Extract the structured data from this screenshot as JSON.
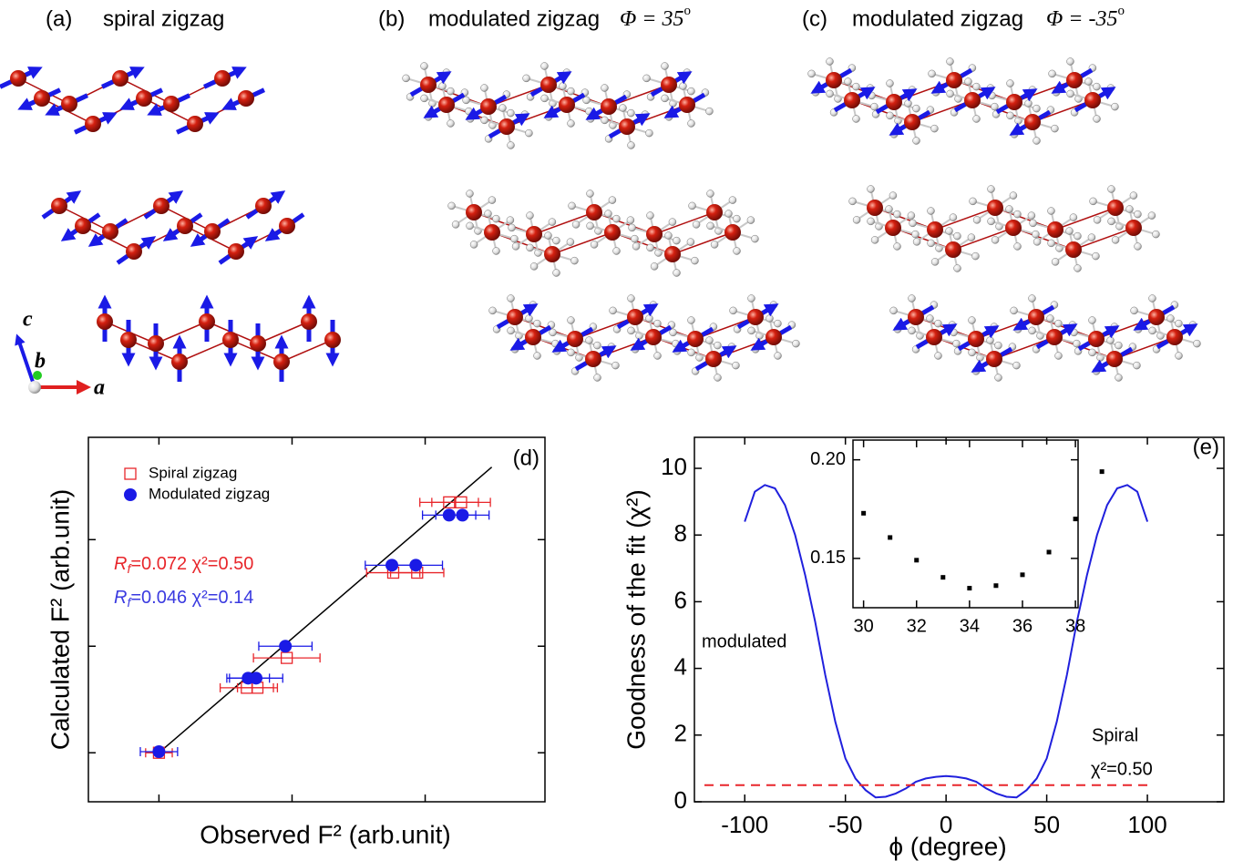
{
  "panels": [
    {
      "letter": "(a)",
      "title": "spiral zigzag"
    },
    {
      "letter": "(b)",
      "title": "modulated zigzag",
      "phi": "Φ = 35",
      "phi_sup": "o"
    },
    {
      "letter": "(c)",
      "title": "modulated zigzag",
      "phi": "Φ =  -35",
      "phi_sup": "o"
    }
  ],
  "axes_labels": {
    "c": "c",
    "b": "b",
    "a": "a"
  },
  "chart_data": [
    {
      "type": "scatter",
      "label": "(d)",
      "xlabel": "Observed F² (arb.unit)",
      "ylabel": "Calculated F² (arb.unit)",
      "xlim": [
        0.47,
        3.9
      ],
      "ylim": [
        0.54,
        3.96
      ],
      "xticks": [
        1,
        2,
        3
      ],
      "yticks": [
        1,
        2,
        3
      ],
      "series": [
        {
          "name": "Spiral zigzag",
          "color": "#e8262b",
          "marker": "open-square",
          "x": [
            3.18,
            3.27,
            2.76,
            2.94,
            1.96,
            1.66,
            1.74,
            1.0
          ],
          "values": [
            3.35,
            3.35,
            2.69,
            2.69,
            1.89,
            1.61,
            1.61,
            1.0
          ],
          "xerr": [
            0.22,
            0.22,
            0.2,
            0.2,
            0.25,
            0.2,
            0.15,
            0.1
          ]
        },
        {
          "name": "Modulated zigzag",
          "color": "#1a1ae6",
          "marker": "filled-circle",
          "x": [
            3.18,
            3.28,
            2.75,
            2.93,
            1.95,
            1.67,
            1.73,
            1.0
          ],
          "values": [
            3.23,
            3.23,
            2.76,
            2.76,
            2.0,
            1.7,
            1.7,
            1.01
          ],
          "xerr": [
            0.2,
            0.2,
            0.2,
            0.2,
            0.2,
            0.16,
            0.2,
            0.14
          ]
        }
      ],
      "fit": {
        "color": "#000000",
        "x": [
          1,
          3.5
        ],
        "values": [
          1,
          3.68
        ]
      },
      "annotations": [
        {
          "text": "R",
          "sub": "f",
          "rest": "=0.072  χ²=0.50",
          "color": "#e8262b"
        },
        {
          "text": "R",
          "sub": "f",
          "rest": "=0.046  χ²=0.14",
          "color": "#3a3ae0"
        }
      ]
    },
    {
      "type": "line",
      "label": "(e)",
      "xlabel": "ϕ (degree)",
      "ylabel": "Goodness of the fit (χ²)",
      "xlim": [
        -125,
        138
      ],
      "ylim": [
        0,
        10.93
      ],
      "xticks": [
        -100,
        -50,
        0,
        50,
        100
      ],
      "yticks": [
        0,
        2,
        4,
        6,
        8,
        10
      ],
      "series": [
        {
          "name": "modulated",
          "color": "#2020dd",
          "x": [
            -100,
            -95,
            -90,
            -85,
            -80,
            -75,
            -70,
            -65,
            -60,
            -55,
            -50,
            -45,
            -40,
            -35,
            -30,
            -25,
            -20,
            -15,
            -10,
            -5,
            0,
            5,
            10,
            15,
            20,
            25,
            30,
            35,
            40,
            45,
            50,
            55,
            60,
            65,
            70,
            75,
            80,
            85,
            90,
            95,
            100
          ],
          "values": [
            8.4,
            9.3,
            9.5,
            9.4,
            8.9,
            8.0,
            6.8,
            5.4,
            3.8,
            2.4,
            1.3,
            0.7,
            0.35,
            0.13,
            0.15,
            0.25,
            0.4,
            0.6,
            0.7,
            0.75,
            0.77,
            0.75,
            0.7,
            0.6,
            0.4,
            0.25,
            0.15,
            0.13,
            0.35,
            0.7,
            1.3,
            2.4,
            3.8,
            5.4,
            6.8,
            8.0,
            8.9,
            9.4,
            9.5,
            9.3,
            8.4
          ]
        },
        {
          "name": "Spiral",
          "label": "χ²=0.50",
          "color": "#e8262b",
          "dashed": true,
          "x": [
            -120,
            100
          ],
          "values": [
            0.5,
            0.5
          ]
        }
      ],
      "inset": {
        "type": "scatter",
        "xlim": [
          29.6,
          38.1
        ],
        "ylim": [
          0.125,
          0.21
        ],
        "xticks": [
          30,
          32,
          34,
          36,
          38
        ],
        "yticks": [
          0.15,
          {
            "value": 0.2,
            "label": "0.20"
          }
        ],
        "color": "#000000",
        "x": [
          30,
          31,
          32,
          33,
          34,
          35,
          36,
          37,
          38,
          39
        ],
        "values": [
          0.1729,
          0.1606,
          0.1491,
          0.1404,
          0.1349,
          0.1362,
          0.1417,
          0.1532,
          0.17,
          0.194
        ]
      }
    }
  ]
}
